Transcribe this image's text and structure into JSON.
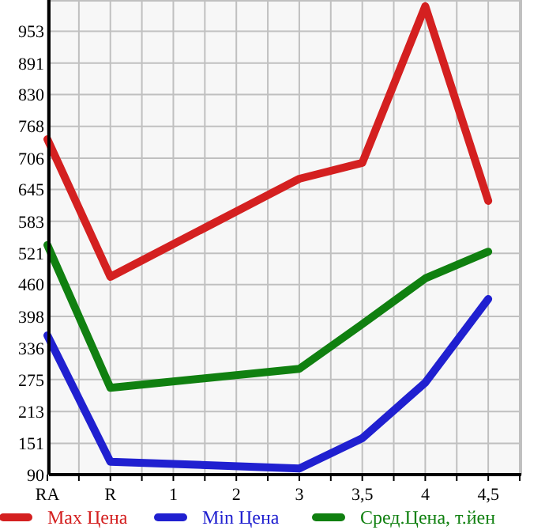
{
  "chart_data": {
    "type": "line",
    "categories": [
      "RA",
      "R",
      "1",
      "2",
      "3",
      "3,5",
      "4",
      "4,5"
    ],
    "series": [
      {
        "name": "Max Цена",
        "color": "#d42020",
        "values": [
          743,
          475,
          null,
          null,
          666,
          697,
          1002,
          623
        ]
      },
      {
        "name": "Min Цена",
        "color": "#2020d0",
        "values": [
          361,
          115,
          null,
          null,
          102,
          161,
          269,
          432
        ]
      },
      {
        "name": "Сред.Цена, т.йен",
        "color": "#108010",
        "values": [
          537,
          259,
          null,
          null,
          296,
          383,
          472,
          524
        ]
      }
    ],
    "ylim": [
      90,
      1014
    ],
    "yticks": [
      90,
      151,
      213,
      275,
      336,
      398,
      460,
      521,
      583,
      645,
      706,
      768,
      830,
      891,
      953
    ],
    "grid": true,
    "legend": "bottom",
    "marker": "none",
    "line_style": "solid"
  }
}
